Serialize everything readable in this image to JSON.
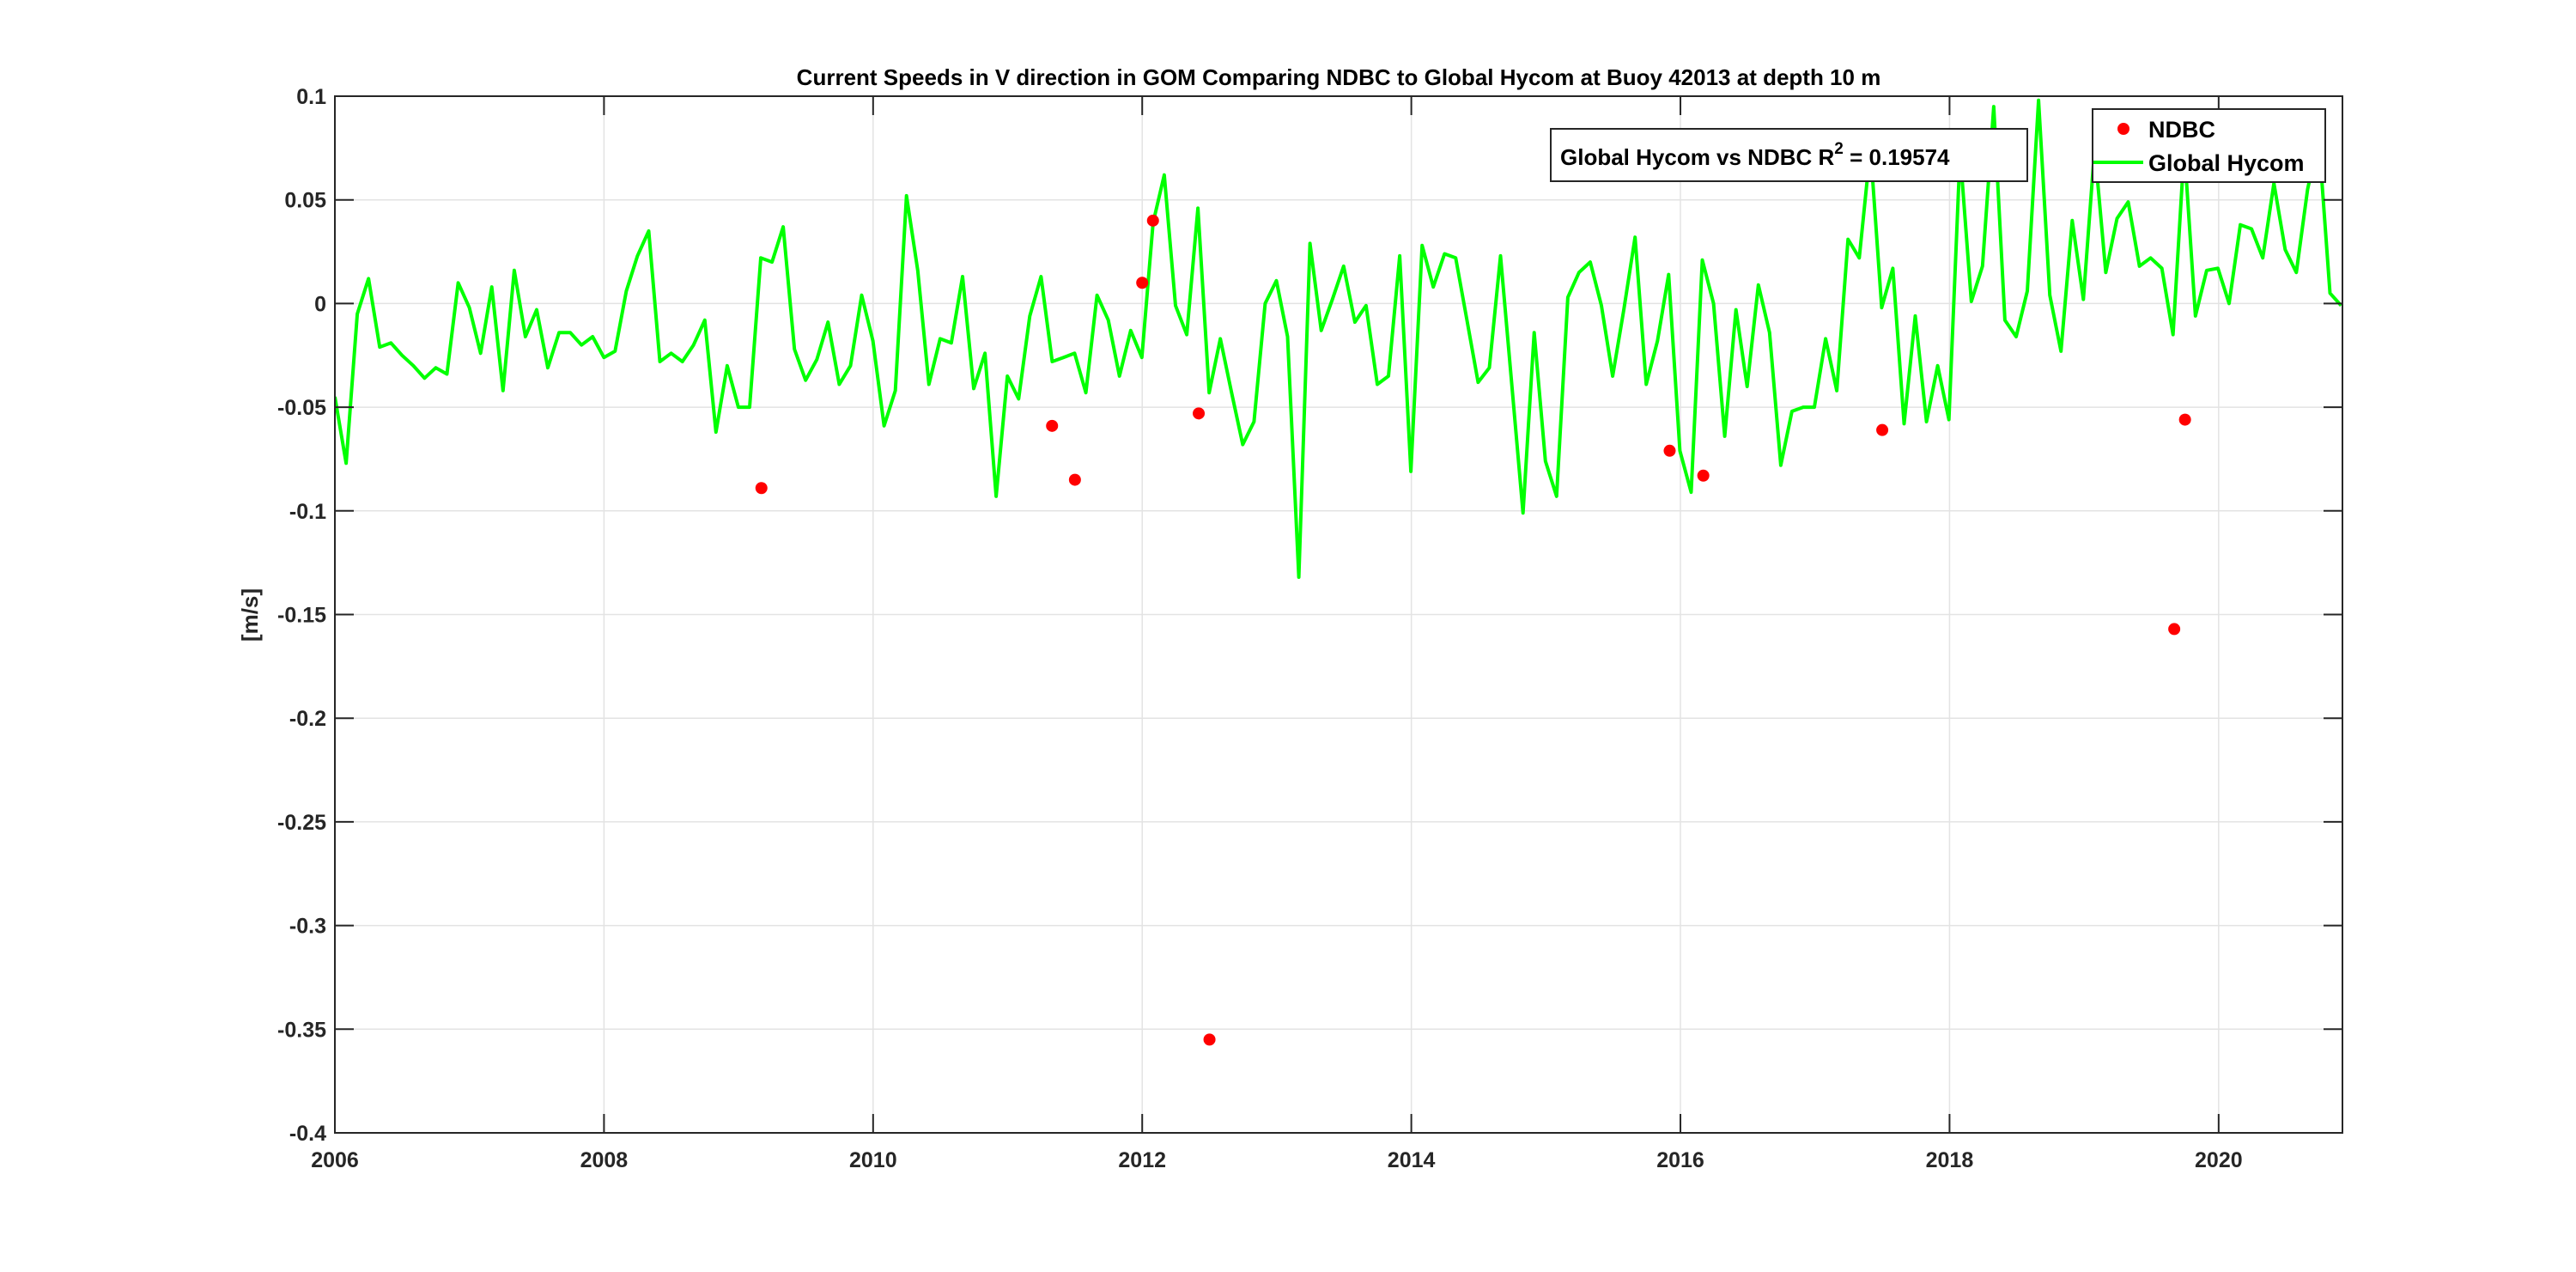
{
  "chart_data": {
    "type": "line",
    "title": "Current Speeds in V direction in GOM Comparing NDBC to Global Hycom at Buoy  42013  at depth  10 m",
    "xlabel": "",
    "ylabel": "[m/s]",
    "xlim": [
      2006,
      2020.92
    ],
    "ylim": [
      -0.4,
      0.1
    ],
    "x_ticks": [
      2006,
      2008,
      2010,
      2012,
      2014,
      2016,
      2018,
      2020
    ],
    "x_tick_labels": [
      "2006",
      "2008",
      "2010",
      "2012",
      "2014",
      "2016",
      "2018",
      "2020"
    ],
    "y_ticks": [
      -0.4,
      -0.35,
      -0.3,
      -0.25,
      -0.2,
      -0.15,
      -0.1,
      -0.05,
      0,
      0.05,
      0.1
    ],
    "y_tick_labels": [
      "-0.4",
      "-0.35",
      "-0.3",
      "-0.25",
      "-0.2",
      "-0.15",
      "-0.1",
      "-0.05",
      "0",
      "0.05",
      "0.1"
    ],
    "grid": true,
    "legend_position": "top-right",
    "annotation": {
      "text_main": "Global Hycom vs NDBC R",
      "text_sup": "2",
      "text_tail": " = 0.19574"
    },
    "series": [
      {
        "name": "NDBC",
        "kind": "scatter",
        "color": "#ff0000",
        "x": [
          2009.17,
          2011.33,
          2011.5,
          2012.0,
          2012.08,
          2012.42,
          2012.5,
          2015.92,
          2016.17,
          2017.5,
          2019.67,
          2019.75
        ],
        "y": [
          -0.089,
          -0.059,
          -0.085,
          0.01,
          0.04,
          -0.053,
          -0.355,
          -0.071,
          -0.083,
          -0.061,
          -0.157,
          -0.056
        ]
      },
      {
        "name": "Global Hycom",
        "kind": "line",
        "color": "#00ff00",
        "x_start": 2006.0,
        "x_step": 0.0833,
        "y": [
          -0.045,
          -0.077,
          -0.005,
          0.012,
          -0.021,
          -0.019,
          -0.025,
          -0.03,
          -0.036,
          -0.031,
          -0.034,
          0.01,
          -0.002,
          -0.024,
          0.008,
          -0.042,
          0.016,
          -0.016,
          -0.003,
          -0.031,
          -0.014,
          -0.014,
          -0.02,
          -0.016,
          -0.026,
          -0.023,
          0.006,
          0.023,
          0.035,
          -0.028,
          -0.024,
          -0.028,
          -0.02,
          -0.008,
          -0.062,
          -0.03,
          -0.05,
          -0.05,
          0.022,
          0.02,
          0.037,
          -0.022,
          -0.037,
          -0.027,
          -0.009,
          -0.039,
          -0.03,
          0.004,
          -0.018,
          -0.059,
          -0.042,
          0.052,
          0.016,
          -0.039,
          -0.017,
          -0.019,
          0.013,
          -0.041,
          -0.024,
          -0.093,
          -0.035,
          -0.046,
          -0.006,
          0.013,
          -0.028,
          -0.026,
          -0.024,
          -0.043,
          0.004,
          -0.008,
          -0.035,
          -0.013,
          -0.026,
          0.039,
          0.062,
          -0.001,
          -0.015,
          0.046,
          -0.043,
          -0.017,
          -0.043,
          -0.068,
          -0.057,
          0.0,
          0.011,
          -0.016,
          -0.132,
          0.029,
          -0.013,
          0.002,
          0.018,
          -0.009,
          -0.001,
          -0.039,
          -0.035,
          0.023,
          -0.081,
          0.028,
          0.008,
          0.024,
          0.022,
          -0.008,
          -0.038,
          -0.031,
          0.023,
          -0.039,
          -0.101,
          -0.014,
          -0.076,
          -0.093,
          0.003,
          0.015,
          0.02,
          -0.001,
          -0.035,
          -0.003,
          0.032,
          -0.039,
          -0.018,
          0.014,
          -0.071,
          -0.091,
          0.021,
          0.0,
          -0.064,
          -0.003,
          -0.04,
          0.009,
          -0.014,
          -0.078,
          -0.052,
          -0.05,
          -0.05,
          -0.017,
          -0.042,
          0.031,
          0.022,
          0.075,
          -0.002,
          0.017,
          -0.058,
          -0.006,
          -0.057,
          -0.03,
          -0.056,
          0.073,
          0.001,
          0.018,
          0.095,
          -0.008,
          -0.016,
          0.006,
          0.098,
          0.004,
          -0.023,
          0.04,
          0.002,
          0.075,
          0.015,
          0.041,
          0.049,
          0.018,
          0.022,
          0.017,
          -0.015,
          0.075,
          -0.006,
          0.016,
          0.017,
          0.0,
          0.038,
          0.036,
          0.022,
          0.058,
          0.026,
          0.015,
          0.055,
          0.08,
          0.005,
          -0.001
        ]
      }
    ]
  }
}
